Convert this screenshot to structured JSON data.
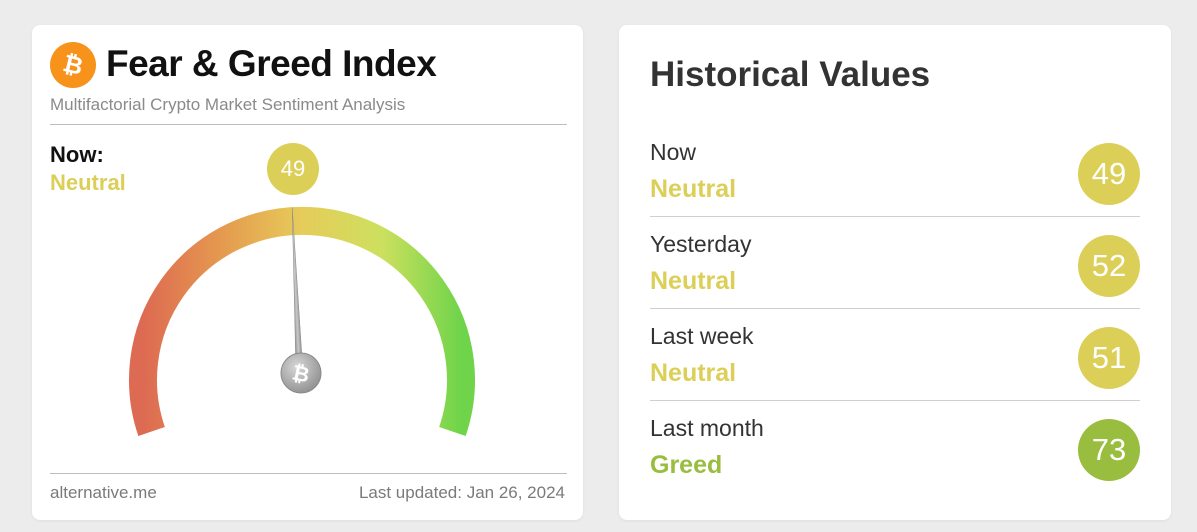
{
  "index": {
    "title": "Fear & Greed Index",
    "subtitle": "Multifactorial Crypto Market Sentiment Analysis",
    "now_label": "Now:",
    "now_status": "Neutral",
    "value": "49",
    "gauge_value": 49,
    "logo_icon": "bitcoin-icon",
    "footer_source": "alternative.me",
    "footer_updated": "Last updated: Jan 26, 2024"
  },
  "historical": {
    "title": "Historical Values",
    "rows": [
      {
        "label": "Now",
        "status": "Neutral",
        "value": "49",
        "color": "#dccf58"
      },
      {
        "label": "Yesterday",
        "status": "Neutral",
        "value": "52",
        "color": "#dccf58"
      },
      {
        "label": "Last week",
        "status": "Neutral",
        "value": "51",
        "color": "#dccf58"
      },
      {
        "label": "Last month",
        "status": "Greed",
        "value": "73",
        "color": "#99bd3e"
      }
    ]
  },
  "colors": {
    "neutral": "#dccf58",
    "greed": "#99bd3e",
    "bitcoin_orange": "#f7931a"
  }
}
